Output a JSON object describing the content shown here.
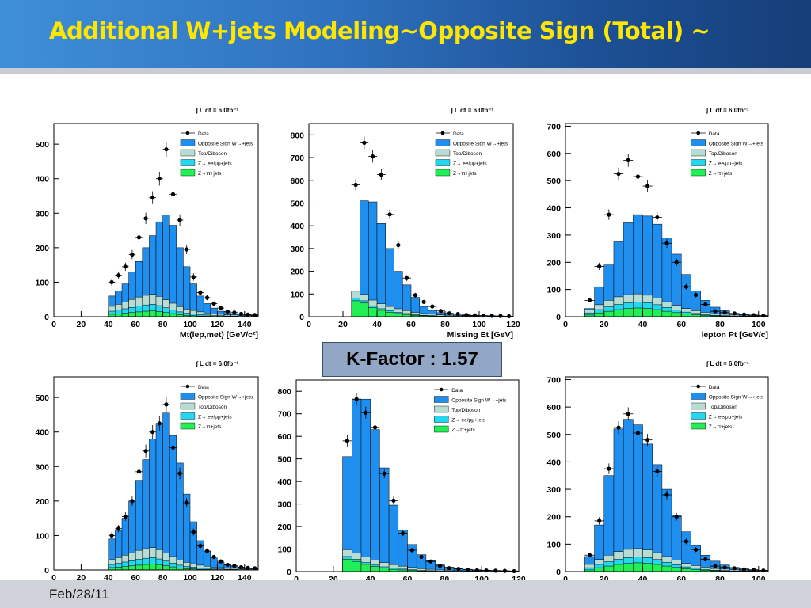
{
  "title": "Additional W+jets Modeling~Opposite Sign (Total) ~",
  "footer_date": "Feb/28/11",
  "callout": {
    "label": "K-Factor : 1.57"
  },
  "colors": {
    "background": "#ffffff",
    "header_left": "#3f8fd8",
    "header_right": "#163e78",
    "title": "#ffe600",
    "w_jets": "#1f8fef",
    "top_diboson": "#b6dcd4",
    "z_ee_mumu": "#22d7ef",
    "z_tautau": "#22ee55",
    "data": "#000000"
  },
  "chart_data": [
    {
      "type": "bar",
      "panel": "top-left",
      "lumi_label": "∫ L dt = 6.0fb⁻¹",
      "xlabel": "Mt(lep,met) [GeV/c²]",
      "ylabel": "",
      "xlim": [
        0,
        150
      ],
      "ylim": [
        0,
        560
      ],
      "xticks": [
        0,
        20,
        40,
        60,
        80,
        100,
        120,
        140
      ],
      "yticks": [
        0,
        100,
        200,
        300,
        400,
        500
      ],
      "legend": [
        "Data",
        "Opposite Sign W→+jets",
        "Top/Diboson",
        "Z→ ee/μμ+jets",
        "Z→ττ+jets"
      ],
      "bin_edges": [
        40,
        45,
        50,
        55,
        60,
        65,
        70,
        75,
        80,
        85,
        90,
        95,
        100,
        105,
        110,
        115,
        120,
        125,
        130,
        135,
        140,
        145,
        150
      ],
      "stack": {
        "total": [
          60,
          75,
          95,
          130,
          160,
          200,
          235,
          275,
          295,
          265,
          200,
          145,
          95,
          60,
          38,
          25,
          16,
          12,
          8,
          7,
          5,
          4
        ],
        "top_diboson": [
          14,
          17,
          20,
          23,
          26,
          28,
          29,
          27,
          23,
          19,
          15,
          12,
          10,
          8,
          6,
          5,
          4,
          3,
          3,
          2,
          2,
          2
        ],
        "z_ee_mumu": [
          9,
          11,
          13,
          15,
          17,
          18,
          19,
          17,
          14,
          11,
          8,
          6,
          5,
          4,
          3,
          2,
          2,
          1,
          1,
          1,
          1,
          1
        ],
        "z_tautau": [
          7,
          8,
          10,
          12,
          14,
          16,
          17,
          15,
          12,
          9,
          6,
          4,
          3,
          2,
          2,
          1,
          1,
          1,
          1,
          0,
          0,
          0
        ]
      },
      "data_points": {
        "x": [
          42.5,
          47.5,
          52.5,
          57.5,
          62.5,
          67.5,
          72.5,
          77.5,
          82.5,
          87.5,
          92.5,
          97.5,
          102.5,
          107.5,
          112.5,
          117.5,
          122.5,
          127.5,
          132.5,
          137.5,
          142.5,
          147.5
        ],
        "y": [
          100,
          120,
          145,
          180,
          230,
          285,
          345,
          400,
          485,
          355,
          280,
          195,
          115,
          70,
          55,
          38,
          25,
          15,
          12,
          8,
          6,
          5
        ]
      }
    },
    {
      "type": "bar",
      "panel": "top-middle",
      "lumi_label": "∫ L dt = 6.0fb⁻¹",
      "xlabel": "Missing Et [GeV]",
      "ylabel": "",
      "xlim": [
        0,
        120
      ],
      "ylim": [
        0,
        850
      ],
      "xticks": [
        0,
        20,
        40,
        60,
        80,
        100,
        120
      ],
      "yticks": [
        0,
        100,
        200,
        300,
        400,
        500,
        600,
        700,
        800
      ],
      "legend": [
        "Data",
        "Opposite Sign W→+jets",
        "Top/Diboson",
        "Z→ ee/μμ+jets",
        "Z→ττ+jets"
      ],
      "bin_edges": [
        25,
        30,
        35,
        40,
        45,
        50,
        55,
        60,
        65,
        70,
        75,
        80,
        85,
        90,
        95,
        100,
        105,
        110,
        115,
        120
      ],
      "stack": {
        "total": [
          80,
          510,
          505,
          410,
          300,
          200,
          140,
          85,
          45,
          28,
          18,
          12,
          8,
          6,
          5,
          4,
          3,
          2,
          2
        ],
        "top_diboson": [
          30,
          28,
          25,
          22,
          19,
          16,
          13,
          10,
          8,
          6,
          5,
          4,
          3,
          2,
          2,
          1,
          1,
          1,
          1
        ],
        "z_ee_mumu": [
          12,
          10,
          8,
          7,
          6,
          5,
          4,
          3,
          2,
          2,
          1,
          1,
          1,
          1,
          1,
          0,
          0,
          0,
          0
        ],
        "z_tautau": [
          70,
          60,
          40,
          28,
          20,
          14,
          10,
          6,
          4,
          3,
          2,
          1,
          1,
          1,
          0,
          0,
          0,
          0,
          0
        ]
      },
      "data_points": {
        "x": [
          27.5,
          32.5,
          37.5,
          42.5,
          47.5,
          52.5,
          57.5,
          62.5,
          67.5,
          72.5,
          77.5,
          82.5,
          87.5,
          92.5,
          97.5,
          102.5,
          107.5,
          112.5,
          117.5
        ],
        "y": [
          580,
          765,
          705,
          625,
          450,
          315,
          170,
          95,
          65,
          45,
          25,
          15,
          12,
          8,
          6,
          5,
          4,
          3,
          2
        ]
      }
    },
    {
      "type": "bar",
      "panel": "top-right",
      "lumi_label": "∫ L dt = 6.0fb⁻¹",
      "xlabel": "lepton Pt [GeV/c]",
      "ylabel": "",
      "xlim": [
        0,
        105
      ],
      "ylim": [
        0,
        710
      ],
      "xticks": [
        0,
        20,
        40,
        60,
        80,
        100
      ],
      "yticks": [
        0,
        100,
        200,
        300,
        400,
        500,
        600,
        700
      ],
      "legend": [
        "Data",
        "Opposite Sign W→+jets",
        "Top/Diboson",
        "Z→ ee/μμ+jets",
        "Z→ττ+jets"
      ],
      "bin_edges": [
        10,
        15,
        20,
        25,
        30,
        35,
        40,
        45,
        50,
        55,
        60,
        65,
        70,
        75,
        80,
        85,
        90,
        95,
        100,
        105
      ],
      "stack": {
        "total": [
          30,
          110,
          190,
          275,
          345,
          375,
          370,
          340,
          290,
          230,
          155,
          95,
          60,
          35,
          22,
          12,
          8,
          6,
          4
        ],
        "top_diboson": [
          12,
          18,
          24,
          28,
          30,
          30,
          28,
          25,
          21,
          17,
          13,
          10,
          8,
          6,
          5,
          4,
          3,
          2,
          2
        ],
        "z_ee_mumu": [
          8,
          12,
          16,
          19,
          21,
          22,
          21,
          18,
          14,
          10,
          7,
          5,
          3,
          2,
          2,
          1,
          1,
          1,
          1
        ],
        "z_tautau": [
          6,
          14,
          20,
          26,
          30,
          32,
          30,
          26,
          20,
          15,
          10,
          7,
          5,
          3,
          2,
          1,
          1,
          1,
          0
        ]
      },
      "data_points": {
        "x": [
          12.5,
          17.5,
          22.5,
          27.5,
          32.5,
          37.5,
          42.5,
          47.5,
          52.5,
          57.5,
          62.5,
          67.5,
          72.5,
          77.5,
          82.5,
          87.5,
          92.5,
          97.5,
          102.5
        ],
        "y": [
          60,
          185,
          375,
          525,
          575,
          515,
          480,
          365,
          270,
          200,
          110,
          80,
          45,
          20,
          15,
          12,
          8,
          6,
          4
        ]
      }
    },
    {
      "type": "bar",
      "panel": "bottom-left",
      "lumi_label": "∫ L dt = 6.0fb⁻¹",
      "xlabel": "Mt(lep,met) [GeV/c²]",
      "ylabel": "",
      "xlim": [
        0,
        150
      ],
      "ylim": [
        0,
        560
      ],
      "xticks": [
        0,
        20,
        40,
        60,
        80,
        100,
        120,
        140
      ],
      "yticks": [
        0,
        100,
        200,
        300,
        400,
        500
      ],
      "legend": [
        "Data",
        "Opposite Sign W→+jets",
        "Top/Diboson",
        "Z→ ee/μμ+jets",
        "Z→ττ+jets"
      ],
      "bin_edges": [
        40,
        45,
        50,
        55,
        60,
        65,
        70,
        75,
        80,
        85,
        90,
        95,
        100,
        105,
        110,
        115,
        120,
        125,
        130,
        135,
        140,
        145,
        150
      ],
      "stack": {
        "total": [
          90,
          115,
          150,
          200,
          260,
          320,
          380,
          425,
          455,
          390,
          310,
          220,
          140,
          85,
          55,
          35,
          22,
          15,
          10,
          8,
          6,
          5
        ],
        "top_diboson": [
          14,
          17,
          20,
          23,
          26,
          28,
          29,
          27,
          23,
          19,
          15,
          12,
          10,
          8,
          6,
          5,
          4,
          3,
          3,
          2,
          2,
          2
        ],
        "z_ee_mumu": [
          9,
          11,
          13,
          15,
          17,
          18,
          19,
          17,
          14,
          11,
          8,
          6,
          5,
          4,
          3,
          2,
          2,
          1,
          1,
          1,
          1,
          1
        ],
        "z_tautau": [
          7,
          8,
          10,
          12,
          14,
          16,
          17,
          15,
          12,
          9,
          6,
          4,
          3,
          2,
          2,
          1,
          1,
          1,
          1,
          0,
          0,
          0
        ]
      },
      "data_points": {
        "x": [
          42.5,
          47.5,
          52.5,
          57.5,
          62.5,
          67.5,
          72.5,
          77.5,
          82.5,
          87.5,
          92.5,
          97.5,
          102.5,
          107.5,
          112.5,
          117.5,
          122.5,
          127.5,
          132.5,
          137.5,
          142.5,
          147.5
        ],
        "y": [
          100,
          120,
          155,
          200,
          285,
          345,
          400,
          425,
          480,
          355,
          280,
          195,
          110,
          70,
          55,
          38,
          25,
          15,
          12,
          8,
          6,
          5
        ]
      }
    },
    {
      "type": "bar",
      "panel": "bottom-middle",
      "lumi_label": "∫ L dt = 6.0fb⁻¹",
      "xlabel": "Missing Et [GeV]",
      "ylabel": "",
      "xlim": [
        0,
        120
      ],
      "ylim": [
        0,
        850
      ],
      "xticks": [
        0,
        20,
        40,
        60,
        80,
        100,
        120
      ],
      "yticks": [
        0,
        100,
        200,
        300,
        400,
        500,
        600,
        700,
        800
      ],
      "legend": [
        "Data",
        "Opposite Sign W→+jets",
        "Top/Diboson",
        "Z→ ee/μμ+jets",
        "Z→ττ+jets"
      ],
      "bin_edges": [
        25,
        30,
        35,
        40,
        45,
        50,
        55,
        60,
        65,
        70,
        75,
        80,
        85,
        90,
        95,
        100,
        105,
        110,
        115,
        120
      ],
      "stack": {
        "total": [
          510,
          765,
          765,
          630,
          460,
          295,
          185,
          120,
          75,
          48,
          30,
          20,
          14,
          10,
          8,
          6,
          5,
          4,
          3
        ],
        "top_diboson": [
          30,
          28,
          25,
          22,
          19,
          16,
          13,
          10,
          8,
          6,
          5,
          4,
          3,
          2,
          2,
          1,
          1,
          1,
          1
        ],
        "z_ee_mumu": [
          12,
          10,
          8,
          7,
          6,
          5,
          4,
          3,
          2,
          2,
          1,
          1,
          1,
          1,
          1,
          0,
          0,
          0,
          0
        ],
        "z_tautau": [
          55,
          45,
          32,
          22,
          15,
          10,
          7,
          5,
          3,
          2,
          1,
          1,
          1,
          0,
          0,
          0,
          0,
          0,
          0
        ]
      },
      "data_points": {
        "x": [
          27.5,
          32.5,
          37.5,
          42.5,
          47.5,
          52.5,
          57.5,
          62.5,
          67.5,
          72.5,
          77.5,
          82.5,
          87.5,
          92.5,
          97.5,
          102.5,
          107.5,
          112.5,
          117.5
        ],
        "y": [
          580,
          765,
          705,
          640,
          435,
          315,
          170,
          95,
          65,
          45,
          25,
          15,
          12,
          8,
          6,
          5,
          4,
          3,
          2
        ]
      }
    },
    {
      "type": "bar",
      "panel": "bottom-right",
      "lumi_label": "∫ L dt = 6.0fb⁻¹",
      "xlabel": "lepton Pt [GeV/c]",
      "ylabel": "",
      "xlim": [
        0,
        105
      ],
      "ylim": [
        0,
        710
      ],
      "xticks": [
        0,
        20,
        40,
        60,
        80,
        100
      ],
      "yticks": [
        0,
        100,
        200,
        300,
        400,
        500,
        600,
        700
      ],
      "legend": [
        "Data",
        "Opposite Sign W→+jets",
        "Top/Diboson",
        "Z→ ee/μμ+jets",
        "Z→ττ+jets"
      ],
      "bin_edges": [
        10,
        15,
        20,
        25,
        30,
        35,
        40,
        45,
        50,
        55,
        60,
        65,
        70,
        75,
        80,
        85,
        90,
        95,
        100,
        105
      ],
      "stack": {
        "total": [
          55,
          170,
          350,
          520,
          555,
          535,
          465,
          390,
          300,
          205,
          145,
          95,
          60,
          38,
          24,
          15,
          10,
          7,
          5
        ],
        "top_diboson": [
          12,
          18,
          24,
          28,
          30,
          30,
          28,
          25,
          21,
          17,
          13,
          10,
          8,
          6,
          5,
          4,
          3,
          2,
          2
        ],
        "z_ee_mumu": [
          8,
          12,
          16,
          19,
          21,
          22,
          21,
          18,
          14,
          10,
          7,
          5,
          3,
          2,
          2,
          1,
          1,
          1,
          1
        ],
        "z_tautau": [
          6,
          14,
          20,
          26,
          30,
          32,
          30,
          26,
          20,
          15,
          10,
          7,
          5,
          3,
          2,
          1,
          1,
          1,
          0
        ]
      },
      "data_points": {
        "x": [
          12.5,
          17.5,
          22.5,
          27.5,
          32.5,
          37.5,
          42.5,
          47.5,
          52.5,
          57.5,
          62.5,
          67.5,
          72.5,
          77.5,
          82.5,
          87.5,
          92.5,
          97.5,
          102.5
        ],
        "y": [
          60,
          185,
          375,
          525,
          575,
          505,
          480,
          365,
          280,
          200,
          110,
          80,
          45,
          20,
          15,
          12,
          8,
          6,
          4
        ]
      }
    }
  ]
}
